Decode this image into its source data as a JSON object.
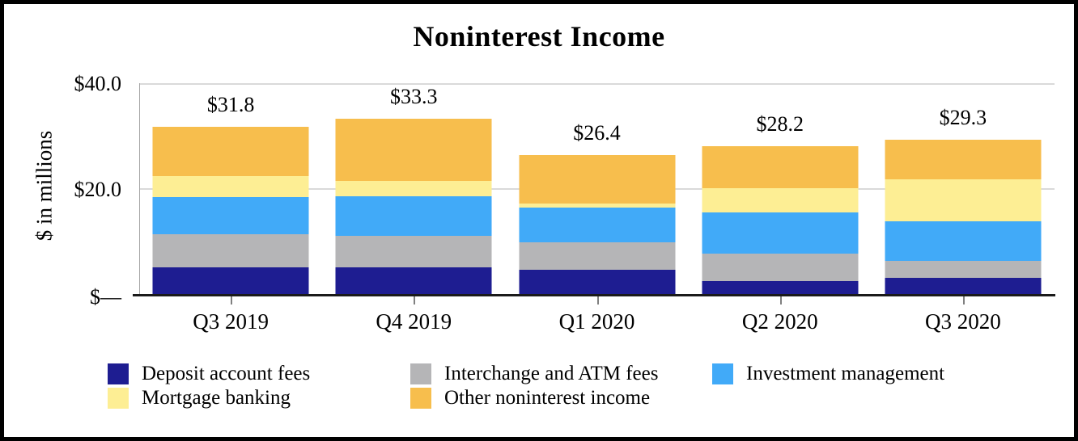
{
  "chart_data": {
    "type": "bar",
    "subtype": "stacked",
    "title": "Noninterest Income",
    "ylabel": "$ in millions",
    "xlabel": "",
    "categories": [
      "Q3 2019",
      "Q4 2019",
      "Q1 2020",
      "Q2 2020",
      "Q3 2020"
    ],
    "series": [
      {
        "name": "Deposit account fees",
        "color": "#1e1d91",
        "values": [
          5.3,
          5.3,
          4.8,
          2.8,
          3.3
        ]
      },
      {
        "name": "Interchange and ATM fees",
        "color": "#b5b5b7",
        "values": [
          6.2,
          6.0,
          5.2,
          5.1,
          3.2
        ]
      },
      {
        "name": "Investment management",
        "color": "#41aaf8",
        "values": [
          7.1,
          7.4,
          6.6,
          7.7,
          7.5
        ]
      },
      {
        "name": "Mortgage banking",
        "color": "#fdee94",
        "values": [
          3.9,
          2.9,
          0.8,
          4.6,
          7.9
        ]
      },
      {
        "name": "Other noninterest income",
        "color": "#f7be4d",
        "values": [
          9.3,
          11.7,
          9.0,
          8.0,
          7.4
        ]
      }
    ],
    "totals": [
      "$31.8",
      "$33.3",
      "$26.4",
      "$28.2",
      "$29.3"
    ],
    "total_values": [
      31.8,
      33.3,
      26.4,
      28.2,
      29.3
    ],
    "y_axis": {
      "max": 40,
      "ticks": [
        {
          "label": "$40.0",
          "value": 40
        },
        {
          "label": "$20.0",
          "value": 20
        },
        {
          "label": "$—",
          "value": 0
        }
      ]
    },
    "legend_position": "bottom",
    "grid": "horizontal"
  },
  "frame": {
    "border_color": "#000000"
  }
}
